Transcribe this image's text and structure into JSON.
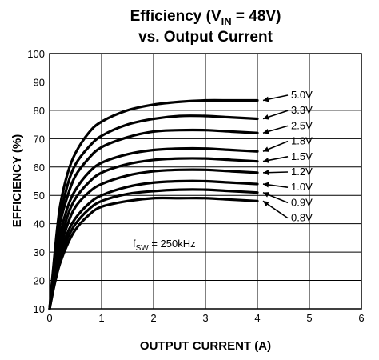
{
  "chart_data": {
    "type": "line",
    "title": {
      "main": "Efficiency (V",
      "sub": "IN",
      "after": " = 48V)",
      "line2": "vs. Output Current"
    },
    "xlabel": "OUTPUT CURRENT (A)",
    "ylabel": "EFFICIENCY (%)",
    "xlim": [
      0,
      6
    ],
    "ylim": [
      10,
      100
    ],
    "xticks": [
      "0",
      "1",
      "2",
      "3",
      "4",
      "5",
      "6"
    ],
    "yticks": [
      "10",
      "20",
      "30",
      "40",
      "50",
      "60",
      "70",
      "80",
      "90",
      "100"
    ],
    "grid": true,
    "annotation": {
      "text": "f",
      "sub": "SW",
      "after": " = 250kHz"
    },
    "series": [
      {
        "name": "5.0V",
        "x": [
          0,
          0.1,
          0.2,
          0.35,
          0.5,
          0.75,
          1.0,
          1.5,
          2.0,
          2.5,
          3.0,
          3.5,
          4.0
        ],
        "values": [
          10,
          30,
          46,
          58,
          65,
          72,
          76,
          80,
          82,
          83,
          83.5,
          83.5,
          83.5
        ]
      },
      {
        "name": "3.3V",
        "x": [
          0,
          0.1,
          0.2,
          0.35,
          0.5,
          0.75,
          1.0,
          1.5,
          2.0,
          2.5,
          3.0,
          3.5,
          4.0
        ],
        "values": [
          10,
          28,
          42,
          54,
          61,
          67,
          71,
          75,
          77,
          78,
          78,
          77.5,
          77
        ]
      },
      {
        "name": "2.5V",
        "x": [
          0,
          0.1,
          0.2,
          0.35,
          0.5,
          0.75,
          1.0,
          1.5,
          2.0,
          2.5,
          3.0,
          3.5,
          4.0
        ],
        "values": [
          10,
          26,
          40,
          50,
          57,
          63,
          67,
          70.5,
          72.5,
          73,
          73,
          72.5,
          72
        ]
      },
      {
        "name": "1.8V",
        "x": [
          0,
          0.1,
          0.2,
          0.35,
          0.5,
          0.75,
          1.0,
          1.5,
          2.0,
          2.5,
          3.0,
          3.5,
          4.0
        ],
        "values": [
          10,
          24,
          36,
          46,
          52,
          58,
          61.5,
          64.5,
          66,
          66.5,
          66.5,
          66,
          65.5
        ]
      },
      {
        "name": "1.5V",
        "x": [
          0,
          0.1,
          0.2,
          0.35,
          0.5,
          0.75,
          1.0,
          1.5,
          2.0,
          2.5,
          3.0,
          3.5,
          4.0
        ],
        "values": [
          10,
          23,
          33,
          43,
          49,
          54.5,
          58,
          61,
          62.5,
          63,
          63,
          62.5,
          62
        ]
      },
      {
        "name": "1.2V",
        "x": [
          0,
          0.1,
          0.2,
          0.35,
          0.5,
          0.75,
          1.0,
          1.5,
          2.0,
          2.5,
          3.0,
          3.5,
          4.0
        ],
        "values": [
          10,
          22,
          31,
          40,
          46,
          51,
          54,
          57,
          58.5,
          59,
          59,
          58.5,
          58
        ]
      },
      {
        "name": "1.0V",
        "x": [
          0,
          0.1,
          0.2,
          0.35,
          0.5,
          0.75,
          1.0,
          1.5,
          2.0,
          2.5,
          3.0,
          3.5,
          4.0
        ],
        "values": [
          10,
          21,
          29,
          37,
          42,
          47,
          50,
          53,
          54.5,
          55,
          55,
          54.5,
          54
        ]
      },
      {
        "name": "0.9V",
        "x": [
          0,
          0.1,
          0.2,
          0.35,
          0.5,
          0.75,
          1.0,
          1.5,
          2.0,
          2.5,
          3.0,
          3.5,
          4.0
        ],
        "values": [
          10,
          20,
          27.5,
          35,
          40,
          45,
          48,
          50.5,
          51.5,
          52,
          52,
          51.5,
          51
        ]
      },
      {
        "name": "0.8V",
        "x": [
          0,
          0.1,
          0.2,
          0.35,
          0.5,
          0.75,
          1.0,
          1.5,
          2.0,
          2.5,
          3.0,
          3.5,
          4.0
        ],
        "values": [
          10,
          19,
          26,
          33,
          38,
          43,
          46,
          48,
          49,
          49,
          49,
          48.5,
          48
        ]
      }
    ]
  }
}
